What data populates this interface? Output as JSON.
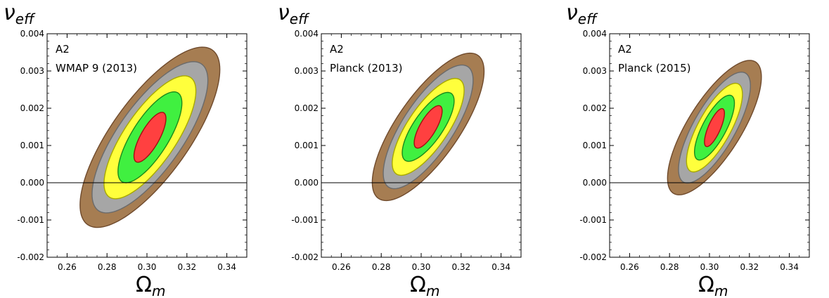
{
  "figure": {
    "y_symbol": "ν",
    "y_subscript": "eff",
    "x_symbol": "Ω",
    "x_subscript": "m"
  },
  "colors": {
    "sigma1": "#ff4040",
    "sigma2": "#40f040",
    "sigma3": "#ffff3c",
    "sigma4": "#a6a6a6",
    "sigma5": "#a67d52",
    "edge": "#6f4a2c"
  },
  "chart_data": [
    {
      "type": "contour",
      "annotation": [
        "A2",
        "WMAP 9 (2013)"
      ],
      "xlim": [
        0.25,
        0.35
      ],
      "ylim": [
        -0.002,
        0.004
      ],
      "xticks": [
        "0.26",
        "0.28",
        "0.30",
        "0.32",
        "0.34"
      ],
      "yticks": [
        "-0.002",
        "-0.001",
        "0.000",
        "0.001",
        "0.002",
        "0.003",
        "0.004"
      ],
      "hline": 0,
      "center": [
        0.3015,
        0.00122
      ],
      "contours": [
        {
          "level": 1,
          "x_extent": [
            0.2935,
            0.3095
          ],
          "y_extent": [
            0.00058,
            0.00192
          ]
        },
        {
          "level": 2,
          "x_extent": [
            0.2855,
            0.3175
          ],
          "y_extent": [
            0.0,
            0.00244
          ]
        },
        {
          "level": 3,
          "x_extent": [
            0.2785,
            0.3245
          ],
          "y_extent": [
            -0.00044,
            0.00286
          ]
        },
        {
          "level": 4,
          "x_extent": [
            0.2725,
            0.3305
          ],
          "y_extent": [
            -0.00082,
            0.00324
          ]
        },
        {
          "level": 5,
          "x_extent": [
            0.2665,
            0.3365
          ],
          "y_extent": [
            -0.0012,
            0.00364
          ]
        }
      ]
    },
    {
      "type": "contour",
      "annotation": [
        "A2",
        "Planck (2013)"
      ],
      "xlim": [
        0.25,
        0.35
      ],
      "ylim": [
        -0.002,
        0.004
      ],
      "xticks": [
        "0.26",
        "0.28",
        "0.30",
        "0.32",
        "0.34"
      ],
      "yticks": [
        "-0.002",
        "-0.001",
        "0.000",
        "0.001",
        "0.002",
        "0.003",
        "0.004"
      ],
      "hline": 0,
      "center": [
        0.3035,
        0.0015
      ],
      "contours": [
        {
          "level": 1,
          "x_extent": [
            0.2965,
            0.3105
          ],
          "y_extent": [
            0.00092,
            0.00206
          ]
        },
        {
          "level": 2,
          "x_extent": [
            0.2905,
            0.3165
          ],
          "y_extent": [
            0.0006,
            0.00245
          ]
        },
        {
          "level": 3,
          "x_extent": [
            0.2855,
            0.3215
          ],
          "y_extent": [
            0.0002,
            0.0028
          ]
        },
        {
          "level": 4,
          "x_extent": [
            0.2815,
            0.3265
          ],
          "y_extent": [
            -0.0002,
            0.00312
          ]
        },
        {
          "level": 5,
          "x_extent": [
            0.2765,
            0.3325
          ],
          "y_extent": [
            -0.0005,
            0.00346
          ]
        }
      ]
    },
    {
      "type": "contour",
      "annotation": [
        "A2",
        "Planck (2015)"
      ],
      "xlim": [
        0.25,
        0.35
      ],
      "ylim": [
        -0.002,
        0.004
      ],
      "xticks": [
        "0.26",
        "0.28",
        "0.30",
        "0.32",
        "0.34"
      ],
      "yticks": [
        "-0.002",
        "-0.001",
        "0.000",
        "0.001",
        "0.002",
        "0.003",
        "0.004"
      ],
      "hline": 0,
      "center": [
        0.3025,
        0.00148
      ],
      "contours": [
        {
          "level": 1,
          "x_extent": [
            0.2975,
            0.3075
          ],
          "y_extent": [
            0.00098,
            0.002
          ]
        },
        {
          "level": 2,
          "x_extent": [
            0.2925,
            0.3125
          ],
          "y_extent": [
            0.00062,
            0.00236
          ]
        },
        {
          "level": 3,
          "x_extent": [
            0.2885,
            0.3165
          ],
          "y_extent": [
            0.0003,
            0.00268
          ]
        },
        {
          "level": 4,
          "x_extent": [
            0.2845,
            0.3205
          ],
          "y_extent": [
            0.0,
            0.00298
          ]
        },
        {
          "level": 5,
          "x_extent": [
            0.2795,
            0.3265
          ],
          "y_extent": [
            -0.00033,
            0.00328
          ]
        }
      ]
    }
  ]
}
